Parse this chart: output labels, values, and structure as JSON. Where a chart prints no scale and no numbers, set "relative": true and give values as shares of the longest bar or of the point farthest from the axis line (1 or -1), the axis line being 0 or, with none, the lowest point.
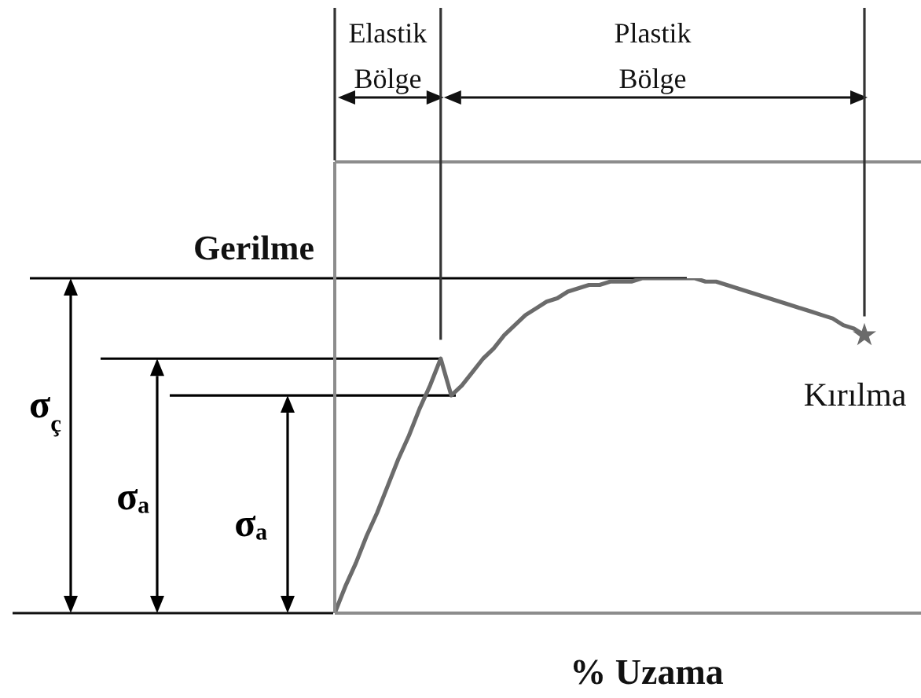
{
  "chart_data": {
    "type": "line",
    "relative": true,
    "xlabel": "% Uzama",
    "ylabel": "Gerilme",
    "line_style": "solid",
    "categories": [
      null,
      null,
      null,
      null,
      null,
      null,
      null,
      null,
      null,
      null,
      null,
      null,
      null,
      null,
      null,
      null,
      null,
      null,
      null,
      null,
      null,
      null,
      null,
      null,
      null,
      null,
      null,
      null,
      null,
      null,
      null,
      null,
      null,
      null,
      null,
      null,
      null,
      null,
      null,
      null,
      null,
      null,
      null,
      null,
      null,
      null,
      null,
      null,
      null,
      null,
      null
    ],
    "series": [
      {
        "color": "#6b6b6b",
        "values": [
          0,
          0.08,
          0.15,
          0.23,
          0.3,
          0.38,
          0.46,
          0.53,
          0.61,
          0.68,
          0.76,
          0.65,
          0.68,
          0.72,
          0.76,
          0.79,
          0.83,
          0.86,
          0.89,
          0.91,
          0.93,
          0.94,
          0.96,
          0.97,
          0.98,
          0.98,
          0.99,
          0.99,
          0.99,
          1,
          1,
          1,
          1,
          1,
          1,
          0.99,
          0.99,
          0.98,
          0.97,
          0.96,
          0.95,
          0.94,
          0.93,
          0.92,
          0.91,
          0.9,
          0.89,
          0.88,
          0.86,
          0.85,
          0.83
        ]
      }
    ],
    "ref_lines": [
      {
        "axis": "y",
        "value": 1,
        "label": "σ$_{ç}$",
        "color": "#000000"
      },
      {
        "axis": "y",
        "value": 0.76,
        "label": "σₐ",
        "color": "#000000"
      },
      {
        "axis": "y",
        "value": 0.65,
        "label": "σₐ",
        "color": "#000000"
      }
    ],
    "annotations": [
      "Elastik Bölge",
      "Plastik Bölge",
      {
        "text": "Kırılma",
        "y": 0.83
      }
    ]
  }
}
